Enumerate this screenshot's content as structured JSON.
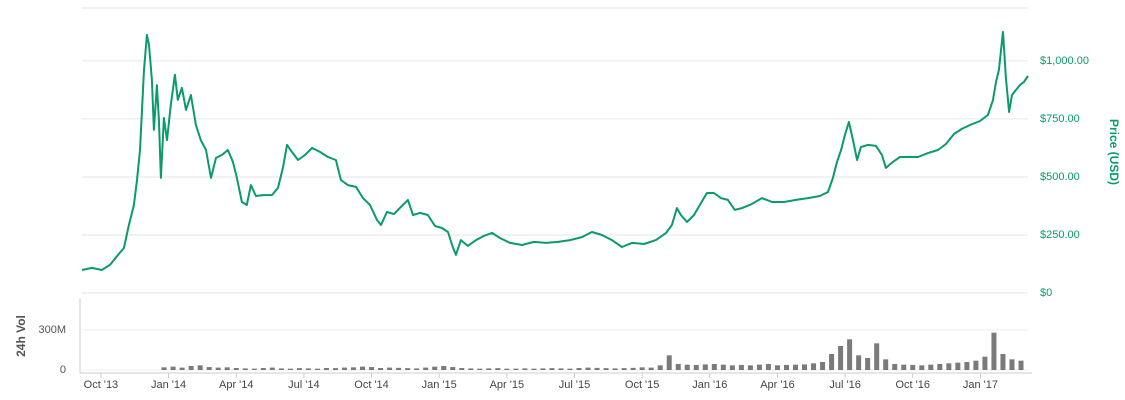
{
  "chart_data": [
    {
      "type": "line",
      "ylabel": "Price (USD)",
      "color": "#0a9a6c",
      "xlim": [
        -0.84,
        41.11
      ],
      "ylim": [
        0,
        1228
      ],
      "yticks": [
        {
          "value": 0,
          "label": "$0"
        },
        {
          "value": 250,
          "label": "$250.00"
        },
        {
          "value": 500,
          "label": "$500.00"
        },
        {
          "value": 750,
          "label": "$750.00"
        },
        {
          "value": 1000,
          "label": "$1,000.00"
        }
      ],
      "grid": true,
      "x": [
        -0.84,
        -0.4,
        0.04,
        0.4,
        0.71,
        1.02,
        1.24,
        1.46,
        1.6,
        1.73,
        1.82,
        1.91,
        2.04,
        2.13,
        2.26,
        2.35,
        2.48,
        2.57,
        2.66,
        2.79,
        2.93,
        3.1,
        3.28,
        3.41,
        3.59,
        3.77,
        3.99,
        4.21,
        4.43,
        4.66,
        4.88,
        5.1,
        5.37,
        5.63,
        5.85,
        6.03,
        6.25,
        6.47,
        6.65,
        6.87,
        7.18,
        7.58,
        7.85,
        8.07,
        8.25,
        8.47,
        8.74,
        9.05,
        9.36,
        9.71,
        10.07,
        10.42,
        10.64,
        10.95,
        11.31,
        11.62,
        11.93,
        12.24,
        12.42,
        12.68,
        12.99,
        13.3,
        13.61,
        13.84,
        14.15,
        14.5,
        14.81,
        15.12,
        15.39,
        15.57,
        15.74,
        15.96,
        16.27,
        16.63,
        16.98,
        17.34,
        17.69,
        18.14,
        18.67,
        19.2,
        19.73,
        20.27,
        20.8,
        21.33,
        21.77,
        22.22,
        22.66,
        23.1,
        23.55,
        24.08,
        24.61,
        25.06,
        25.32,
        25.54,
        25.72,
        25.99,
        26.3,
        26.61,
        26.87,
        27.18,
        27.49,
        27.8,
        28.11,
        28.43,
        28.87,
        29.31,
        29.76,
        30.29,
        30.82,
        31.35,
        31.88,
        32.24,
        32.46,
        32.64,
        32.82,
        32.99,
        33.17,
        33.35,
        33.53,
        33.7,
        34.01,
        34.37,
        34.63,
        34.81,
        35.12,
        35.43,
        35.79,
        36.23,
        36.67,
        37.12,
        37.47,
        37.83,
        38.18,
        38.54,
        38.98,
        39.33,
        39.56,
        39.69,
        39.82,
        40.0,
        40.13,
        40.27,
        40.4,
        40.58,
        40.75,
        40.93,
        41.11
      ],
      "values": [
        99,
        108,
        99,
        121,
        159,
        194,
        293,
        379,
        487,
        616,
        789,
        961,
        1112,
        1069,
        918,
        703,
        896,
        746,
        496,
        754,
        659,
        810,
        940,
        832,
        884,
        789,
        853,
        724,
        659,
        616,
        496,
        582,
        595,
        616,
        565,
        496,
        392,
        379,
        465,
        418,
        422,
        422,
        453,
        539,
        638,
        608,
        573,
        595,
        625,
        608,
        586,
        573,
        487,
        465,
        457,
        409,
        379,
        315,
        293,
        349,
        340,
        371,
        401,
        336,
        345,
        336,
        289,
        280,
        263,
        207,
        164,
        228,
        203,
        228,
        246,
        259,
        237,
        216,
        207,
        220,
        216,
        220,
        228,
        241,
        263,
        250,
        228,
        198,
        216,
        211,
        228,
        259,
        293,
        366,
        336,
        306,
        336,
        388,
        431,
        431,
        409,
        401,
        358,
        366,
        384,
        409,
        392,
        392,
        401,
        409,
        418,
        435,
        496,
        565,
        616,
        681,
        737,
        659,
        573,
        629,
        638,
        634,
        595,
        539,
        565,
        586,
        586,
        586,
        603,
        616,
        642,
        685,
        707,
        724,
        741,
        767,
        832,
        909,
        961,
        1125,
        927,
        780,
        853,
        875,
        896,
        909,
        935
      ]
    },
    {
      "type": "bar",
      "ylabel": "24h Vol",
      "color": "#7a7a7a",
      "xlim": [
        -0.84,
        41.11
      ],
      "ylim": [
        0,
        540
      ],
      "yticks": [
        0,
        {
          "value": 300,
          "label": "300M"
        }
      ],
      "xticks": [
        {
          "value": 0,
          "label": "Oct '13"
        },
        {
          "value": 3,
          "label": "Jan '14"
        },
        {
          "value": 6,
          "label": "Apr '14"
        },
        {
          "value": 9,
          "label": "Jul '14"
        },
        {
          "value": 12,
          "label": "Oct '14"
        },
        {
          "value": 15,
          "label": "Jan '15"
        },
        {
          "value": 18,
          "label": "Apr '15"
        },
        {
          "value": 21,
          "label": "Jul '15"
        },
        {
          "value": 24,
          "label": "Oct '15"
        },
        {
          "value": 27,
          "label": "Jan '16"
        },
        {
          "value": 30,
          "label": "Apr '16"
        },
        {
          "value": 33,
          "label": "Jul '16"
        },
        {
          "value": 36,
          "label": "Oct '16"
        },
        {
          "value": 39,
          "label": "Jan '17"
        }
      ],
      "x": [
        2.8,
        3.2,
        3.6,
        4.0,
        4.4,
        4.8,
        5.2,
        5.6,
        6.0,
        6.4,
        6.8,
        7.2,
        7.6,
        8.0,
        8.4,
        8.8,
        9.2,
        9.6,
        10.0,
        10.4,
        10.8,
        11.2,
        11.6,
        12.0,
        12.4,
        12.8,
        13.2,
        13.6,
        14.0,
        14.4,
        14.8,
        15.2,
        15.6,
        16.0,
        16.4,
        16.8,
        17.2,
        17.6,
        18.0,
        18.4,
        18.8,
        19.2,
        19.6,
        20.0,
        20.4,
        20.8,
        21.2,
        21.6,
        22.0,
        22.4,
        22.8,
        23.2,
        23.6,
        24.0,
        24.4,
        24.8,
        25.2,
        25.6,
        26.0,
        26.4,
        26.8,
        27.2,
        27.6,
        28.0,
        28.4,
        28.8,
        29.2,
        29.6,
        30.0,
        30.4,
        30.8,
        31.2,
        31.6,
        32.0,
        32.4,
        32.8,
        33.2,
        33.6,
        34.0,
        34.4,
        34.8,
        35.2,
        35.6,
        36.0,
        36.4,
        36.8,
        37.2,
        37.6,
        38.0,
        38.4,
        38.8,
        39.2,
        39.6,
        40.0,
        40.4,
        40.8
      ],
      "values": [
        20,
        25,
        18,
        30,
        35,
        22,
        18,
        20,
        15,
        12,
        10,
        15,
        18,
        12,
        10,
        14,
        12,
        10,
        15,
        14,
        18,
        20,
        25,
        22,
        15,
        18,
        16,
        14,
        12,
        18,
        25,
        30,
        22,
        15,
        12,
        10,
        12,
        14,
        10,
        10,
        12,
        10,
        12,
        14,
        12,
        10,
        15,
        18,
        16,
        14,
        12,
        14,
        16,
        20,
        18,
        35,
        110,
        45,
        40,
        38,
        42,
        45,
        40,
        35,
        38,
        35,
        40,
        45,
        35,
        38,
        40,
        42,
        50,
        60,
        120,
        180,
        230,
        110,
        90,
        200,
        80,
        45,
        40,
        38,
        35,
        40,
        45,
        50,
        55,
        60,
        70,
        100,
        280,
        120,
        80,
        70
      ]
    }
  ]
}
